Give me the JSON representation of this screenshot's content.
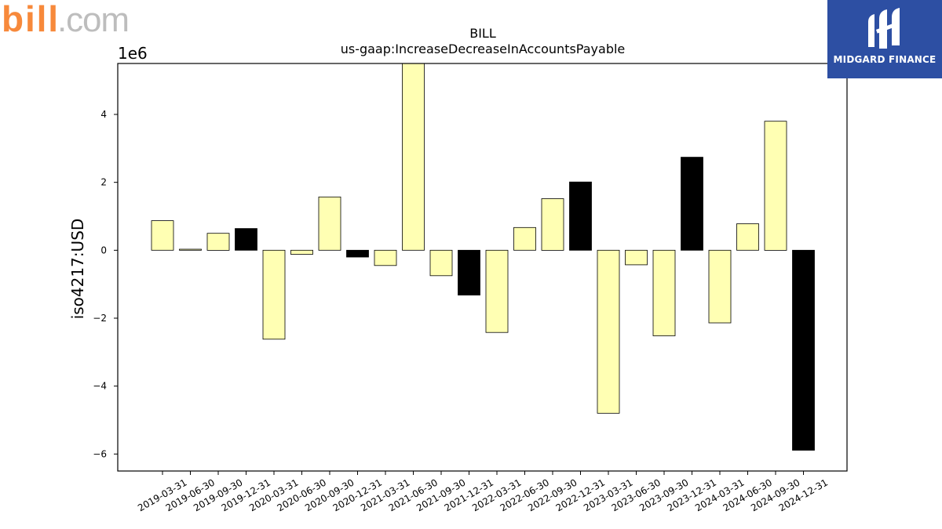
{
  "branding": {
    "left_logo_text": "bill.com",
    "right_logo_text": "MIDGARD FINANCE",
    "accent_orange": "#f7893b",
    "accent_gray": "#bdbdbd",
    "right_logo_bg": "#2d4fa3"
  },
  "chart_data": {
    "type": "bar",
    "title": "BILL",
    "subtitle": "us-gaap:IncreaseDecreaseInAccountsPayable",
    "ylabel": "iso4217:USD",
    "xlabel": "",
    "y_offset_label": "1e6",
    "ylim": [
      -6.5,
      5.5
    ],
    "yticks": [
      -6,
      -4,
      -2,
      0,
      2,
      4
    ],
    "ytick_labels": [
      "−6",
      "−4",
      "−2",
      "0",
      "2",
      "4"
    ],
    "grid": false,
    "legend": "none",
    "colors": {
      "quarter": "#ffffb3",
      "year_end": "#000000",
      "edge": "#000000"
    },
    "categories": [
      "2019-03-31",
      "2019-06-30",
      "2019-09-30",
      "2019-12-31",
      "2020-03-31",
      "2020-06-30",
      "2020-09-30",
      "2020-12-31",
      "2021-03-31",
      "2021-06-30",
      "2021-09-30",
      "2021-12-31",
      "2022-03-31",
      "2022-06-30",
      "2022-09-30",
      "2022-12-31",
      "2023-03-31",
      "2023-06-30",
      "2023-09-30",
      "2023-12-31",
      "2024-03-31",
      "2024-06-30",
      "2024-09-30",
      "2024-12-31"
    ],
    "values": [
      0.87,
      0.03,
      0.5,
      0.64,
      -2.62,
      -0.12,
      1.57,
      -0.2,
      -0.45,
      5.6,
      -0.75,
      -1.32,
      -2.42,
      0.67,
      1.52,
      2.01,
      -4.8,
      -0.43,
      -2.52,
      2.74,
      -2.14,
      0.78,
      3.8,
      -5.89
    ],
    "highlight": [
      false,
      false,
      false,
      true,
      false,
      false,
      false,
      true,
      false,
      false,
      false,
      true,
      false,
      false,
      false,
      true,
      false,
      false,
      false,
      true,
      false,
      false,
      false,
      true
    ]
  }
}
